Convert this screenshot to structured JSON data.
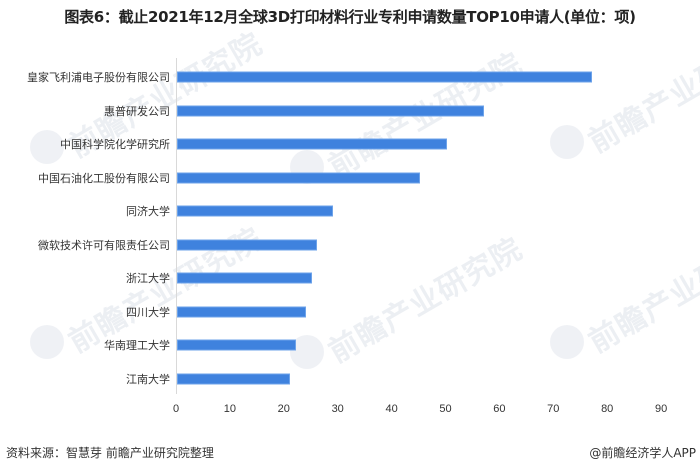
{
  "title": "图表6：截止2021年12月全球3D打印材料行业专利申请数量TOP10申请人(单位：项)",
  "watermark": "前瞻产业研究院",
  "footer": {
    "source": "资料来源：智慧芽 前瞻产业研究院整理",
    "credit": "@前瞻经济学人APP"
  },
  "colors": {
    "bar": "#3f82de"
  },
  "chart_data": {
    "type": "bar",
    "orientation": "horizontal",
    "title": "图表6：截止2021年12月全球3D打印材料行业专利申请数量TOP10申请人(单位：项)",
    "xlabel": "",
    "ylabel": "",
    "xlim": [
      0,
      90
    ],
    "xticks": [
      "0",
      "10",
      "20",
      "30",
      "40",
      "50",
      "60",
      "70",
      "80",
      "90"
    ],
    "grid": false,
    "legend": null,
    "categories": [
      "皇家飞利浦电子股份有限公司",
      "惠普研发公司",
      "中国科学院化学研究所",
      "中国石油化工股份有限公司",
      "同济大学",
      "微软技术许可有限责任公司",
      "浙江大学",
      "四川大学",
      "华南理工大学",
      "江南大学"
    ],
    "values": [
      77,
      57,
      50,
      45,
      29,
      26,
      25,
      24,
      22,
      21
    ]
  }
}
